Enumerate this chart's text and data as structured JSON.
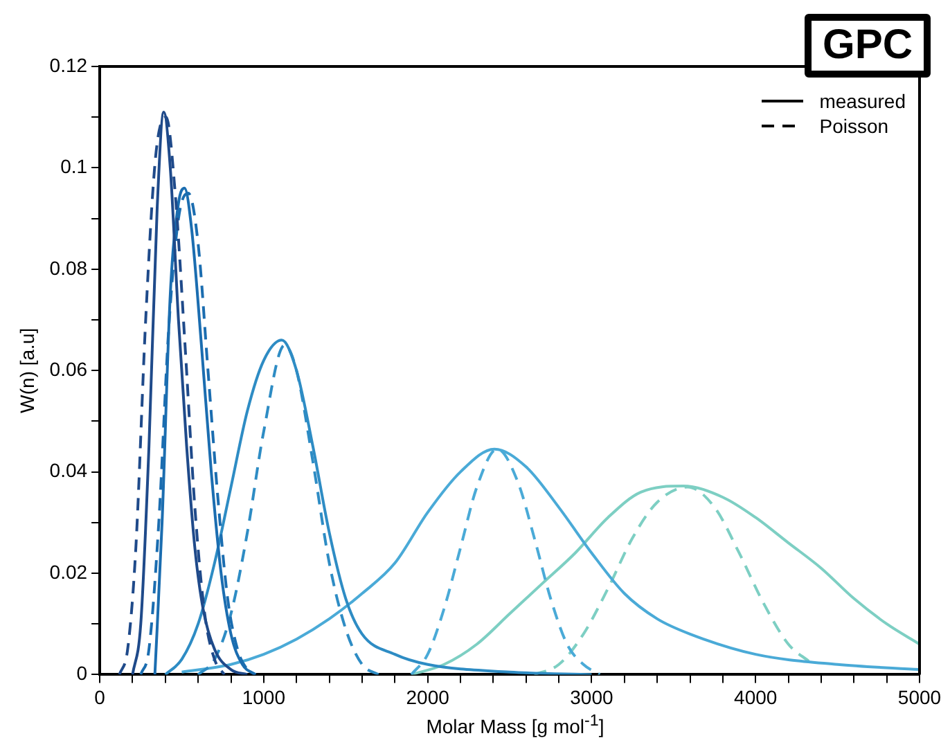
{
  "chart_data": {
    "type": "line",
    "xlabel": "Molar Mass [g mol$^{-1}$]",
    "ylabel": "W(n) [a.u]",
    "annotations": [
      "GPC",
      "measured",
      "Poisson"
    ],
    "xlim": [
      0,
      5000
    ],
    "xticks": [
      0,
      {
        "value": 200,
        "label": null
      },
      {
        "value": 400,
        "label": null
      },
      {
        "value": 600,
        "label": null
      },
      {
        "value": 800,
        "label": null
      },
      1000,
      {
        "value": 1200,
        "label": null
      },
      {
        "value": 1400,
        "label": null
      },
      {
        "value": 1600,
        "label": null
      },
      {
        "value": 1800,
        "label": null
      },
      2000,
      {
        "value": 2200,
        "label": null
      },
      {
        "value": 2400,
        "label": null
      },
      {
        "value": 2600,
        "label": null
      },
      {
        "value": 2800,
        "label": null
      },
      3000,
      {
        "value": 3200,
        "label": null
      },
      {
        "value": 3400,
        "label": null
      },
      {
        "value": 3600,
        "label": null
      },
      {
        "value": 3800,
        "label": null
      },
      4000,
      {
        "value": 4200,
        "label": null
      },
      {
        "value": 4400,
        "label": null
      },
      {
        "value": 4600,
        "label": null
      },
      {
        "value": 4800,
        "label": null
      },
      5000
    ],
    "ylim": [
      0,
      0.12
    ],
    "yticks": [
      0,
      {
        "value": 0.01,
        "label": null
      },
      0.02,
      {
        "value": 0.03,
        "label": null
      },
      0.04,
      {
        "value": 0.05,
        "label": null
      },
      0.06,
      {
        "value": 0.07,
        "label": null
      },
      0.08,
      {
        "value": 0.09,
        "label": null
      },
      0.1,
      {
        "value": 0.11,
        "label": null
      },
      0.12
    ],
    "grid": false,
    "series": [
      {
        "color": "#1f4a8a",
        "line_style": "solid",
        "x": [
          200,
          250,
          300,
          350,
          390,
          430,
          480,
          530,
          580,
          630,
          700,
          800,
          900
        ],
        "values": [
          0,
          0.01,
          0.045,
          0.092,
          0.111,
          0.1,
          0.07,
          0.045,
          0.025,
          0.013,
          0.005,
          0.001,
          0
        ]
      },
      {
        "color": "#1f4a8a",
        "line_style": "dashed",
        "x": [
          120,
          170,
          220,
          280,
          340,
          405,
          460,
          520,
          580,
          640,
          700,
          760
        ],
        "values": [
          0,
          0.005,
          0.025,
          0.07,
          0.102,
          0.11,
          0.095,
          0.065,
          0.033,
          0.012,
          0.003,
          0
        ]
      },
      {
        "color": "#1b6db0",
        "line_style": "solid",
        "x": [
          336,
          380,
          430,
          480,
          517,
          560,
          620,
          680,
          740,
          800,
          870,
          950
        ],
        "values": [
          0,
          0.03,
          0.075,
          0.093,
          0.096,
          0.088,
          0.065,
          0.04,
          0.02,
          0.008,
          0.002,
          0
        ]
      },
      {
        "color": "#1b6db0",
        "line_style": "dashed",
        "x": [
          250,
          300,
          360,
          420,
          480,
          540,
          600,
          660,
          720,
          780,
          840,
          900,
          950
        ],
        "values": [
          0,
          0.005,
          0.03,
          0.068,
          0.09,
          0.095,
          0.085,
          0.06,
          0.035,
          0.015,
          0.005,
          0.001,
          0
        ]
      },
      {
        "color": "#2e8cc4",
        "line_style": "solid",
        "x": [
          400,
          500,
          600,
          700,
          800,
          900,
          1000,
          1110,
          1200,
          1300,
          1400,
          1500,
          1600,
          1800,
          2000,
          2500,
          3000
        ],
        "values": [
          0,
          0.003,
          0.01,
          0.022,
          0.037,
          0.052,
          0.062,
          0.066,
          0.06,
          0.045,
          0.028,
          0.015,
          0.008,
          0.004,
          0.002,
          0.0005,
          0
        ]
      },
      {
        "color": "#2e8cc4",
        "line_style": "dashed",
        "x": [
          600,
          700,
          800,
          900,
          1000,
          1127,
          1200,
          1300,
          1400,
          1500,
          1600,
          1700
        ],
        "values": [
          0,
          0.003,
          0.012,
          0.028,
          0.048,
          0.065,
          0.06,
          0.042,
          0.022,
          0.009,
          0.002,
          0
        ]
      },
      {
        "color": "#4aaad7",
        "line_style": "solid",
        "x": [
          500,
          800,
          1000,
          1200,
          1400,
          1600,
          1800,
          2000,
          2200,
          2407,
          2600,
          2800,
          3000,
          3200,
          3400,
          3600,
          4000,
          4500,
          5000
        ],
        "values": [
          0.0005,
          0.002,
          0.004,
          0.007,
          0.011,
          0.016,
          0.022,
          0.032,
          0.04,
          0.0445,
          0.041,
          0.033,
          0.024,
          0.016,
          0.011,
          0.008,
          0.004,
          0.002,
          0.001
        ]
      },
      {
        "color": "#4aaad7",
        "line_style": "dashed",
        "x": [
          1900,
          2000,
          2100,
          2200,
          2300,
          2424,
          2550,
          2650,
          2750,
          2850,
          2950,
          3050
        ],
        "values": [
          0,
          0.004,
          0.013,
          0.025,
          0.037,
          0.0445,
          0.038,
          0.027,
          0.015,
          0.006,
          0.002,
          0
        ]
      },
      {
        "color": "#7dcfc3",
        "line_style": "solid",
        "x": [
          1900,
          2100,
          2300,
          2500,
          2700,
          2900,
          3100,
          3300,
          3559,
          3800,
          4000,
          4200,
          4400,
          4600,
          4800,
          5000
        ],
        "values": [
          0,
          0.002,
          0.006,
          0.012,
          0.018,
          0.024,
          0.031,
          0.036,
          0.0372,
          0.035,
          0.031,
          0.026,
          0.021,
          0.015,
          0.01,
          0.006
        ]
      },
      {
        "color": "#7dcfc3",
        "line_style": "dashed",
        "x": [
          2650,
          2800,
          2950,
          3100,
          3250,
          3400,
          3585,
          3750,
          3900,
          4050,
          4200,
          4330
        ],
        "values": [
          0,
          0.002,
          0.008,
          0.017,
          0.027,
          0.034,
          0.037,
          0.033,
          0.024,
          0.014,
          0.006,
          0.0025
        ]
      }
    ]
  }
}
